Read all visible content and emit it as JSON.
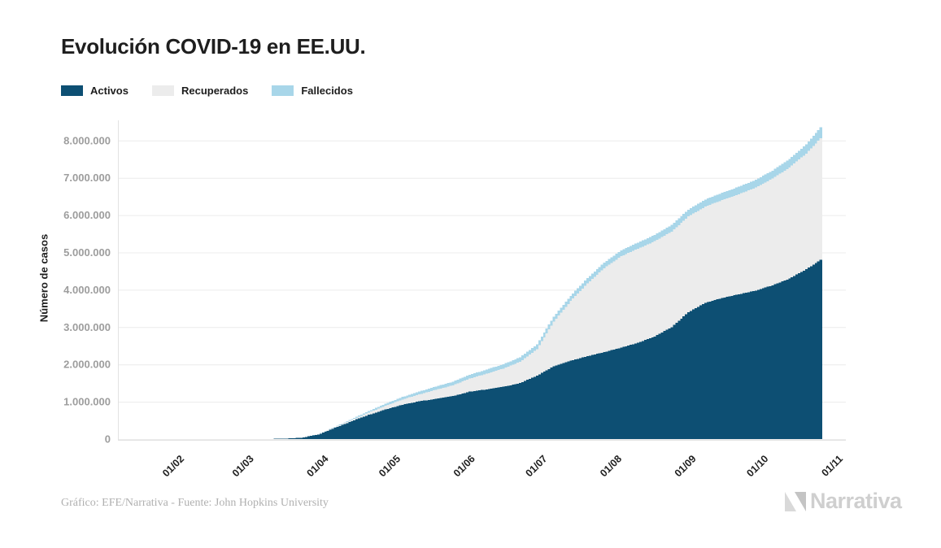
{
  "header": {
    "title": "Evolución COVID-19 en EE.UU."
  },
  "legend": {
    "items": [
      {
        "label": "Activos",
        "color": "#0d4f73"
      },
      {
        "label": "Recuperados",
        "color": "#ececec"
      },
      {
        "label": "Fallecidos",
        "color": "#a8d6e9"
      }
    ]
  },
  "chart_data": {
    "type": "bar",
    "stacked": true,
    "title": "Evolución COVID-19 en EE.UU.",
    "xlabel": "",
    "ylabel": "Número de casos",
    "ylim": [
      0,
      8400000
    ],
    "grid": "horizontal",
    "legend_position": "top-left",
    "y_ticks": [
      {
        "value": 0,
        "label": "0"
      },
      {
        "value": 1000000,
        "label": "1.000.000"
      },
      {
        "value": 2000000,
        "label": "2.000.000"
      },
      {
        "value": 3000000,
        "label": "3.000.000"
      },
      {
        "value": 4000000,
        "label": "4.000.000"
      },
      {
        "value": 5000000,
        "label": "5.000.000"
      },
      {
        "value": 6000000,
        "label": "6.000.000"
      },
      {
        "value": 7000000,
        "label": "7.000.000"
      },
      {
        "value": 8000000,
        "label": "8.000.000"
      }
    ],
    "x_ticks": [
      {
        "date": "2020-02-01",
        "label": "01/02"
      },
      {
        "date": "2020-03-01",
        "label": "01/03"
      },
      {
        "date": "2020-04-01",
        "label": "01/04"
      },
      {
        "date": "2020-05-01",
        "label": "01/05"
      },
      {
        "date": "2020-06-01",
        "label": "01/06"
      },
      {
        "date": "2020-07-01",
        "label": "01/07"
      },
      {
        "date": "2020-08-01",
        "label": "01/08"
      },
      {
        "date": "2020-09-01",
        "label": "01/09"
      },
      {
        "date": "2020-10-01",
        "label": "01/10"
      },
      {
        "date": "2020-11-01",
        "label": "01/11"
      }
    ],
    "dates": [
      "2020-03-01",
      "2020-03-08",
      "2020-03-15",
      "2020-03-22",
      "2020-03-29",
      "2020-04-05",
      "2020-04-12",
      "2020-04-19",
      "2020-04-26",
      "2020-05-03",
      "2020-05-10",
      "2020-05-17",
      "2020-05-24",
      "2020-05-31",
      "2020-06-07",
      "2020-06-14",
      "2020-06-21",
      "2020-06-28",
      "2020-07-05",
      "2020-07-12",
      "2020-07-19",
      "2020-07-26",
      "2020-08-02",
      "2020-08-09",
      "2020-08-16",
      "2020-08-23",
      "2020-08-30",
      "2020-09-06",
      "2020-09-13",
      "2020-09-20",
      "2020-09-27",
      "2020-10-04",
      "2020-10-11",
      "2020-10-18",
      "2020-10-24"
    ],
    "series": [
      {
        "name": "Activos",
        "color": "#0d4f73",
        "values": [
          1000,
          3000,
          10000,
          35000,
          120000,
          300000,
          480000,
          650000,
          790000,
          920000,
          1010000,
          1080000,
          1150000,
          1270000,
          1330000,
          1400000,
          1500000,
          1700000,
          1950000,
          2100000,
          2220000,
          2330000,
          2450000,
          2580000,
          2750000,
          3000000,
          3400000,
          3650000,
          3780000,
          3880000,
          3980000,
          4120000,
          4300000,
          4550000,
          4800000
        ]
      },
      {
        "name": "Recuperados",
        "color": "#ececec",
        "values": [
          0,
          0,
          1000,
          2000,
          8000,
          20000,
          35000,
          60000,
          100000,
          140000,
          185000,
          240000,
          290000,
          350000,
          420000,
          490000,
          570000,
          710000,
          1200000,
          1600000,
          1950000,
          2250000,
          2450000,
          2520000,
          2550000,
          2560000,
          2565000,
          2580000,
          2620000,
          2680000,
          2760000,
          2860000,
          2980000,
          3100000,
          3260000
        ]
      },
      {
        "name": "Fallecidos",
        "color": "#a8d6e9",
        "values": [
          0,
          0,
          100,
          1000,
          2500,
          10000,
          22000,
          40000,
          55000,
          68000,
          79000,
          89000,
          98000,
          105000,
          111000,
          116000,
          121000,
          126000,
          131000,
          136000,
          142000,
          149000,
          157000,
          164000,
          171000,
          178000,
          184000,
          190000,
          196000,
          202000,
          208000,
          215000,
          223000,
          245000,
          300000
        ]
      }
    ]
  },
  "footer": {
    "credit": "Gráfico: EFE/Narrativa - Fuente: John Hopkins University",
    "brand": "Narrativa"
  }
}
